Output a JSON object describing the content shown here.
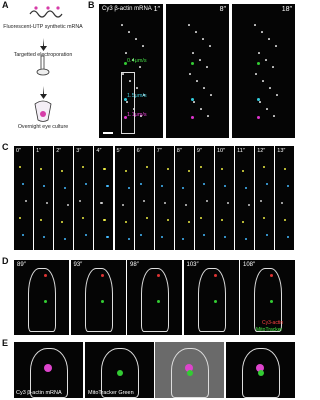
{
  "panels": {
    "a": {
      "label": "A",
      "steps": [
        "Fluorescent-UTP synthetic mRNA",
        "Targetted electroporation",
        "Overnight eye culture"
      ]
    },
    "b": {
      "label": "B",
      "title": "Cy3 β-actin mRNA",
      "times": [
        "1″",
        "8″",
        "18″"
      ],
      "speeds": [
        "0.4μm/s",
        "1.5μm/s",
        "1.1μm/s"
      ]
    },
    "c": {
      "label": "C",
      "times": [
        "0″",
        "1″",
        "2″",
        "3″",
        "4″",
        "5″",
        "6″",
        "7″",
        "8″",
        "9″",
        "10″",
        "11″",
        "12″",
        "13″"
      ]
    },
    "d": {
      "label": "D",
      "times": [
        "89″",
        "93″",
        "98″",
        "103″",
        "108″"
      ],
      "legend": [
        "Cy3-actin",
        "MitoTracker"
      ]
    },
    "e": {
      "label": "E",
      "captions": [
        "Cy3 β-actin mRNA",
        "MitoTracker Green"
      ]
    }
  }
}
